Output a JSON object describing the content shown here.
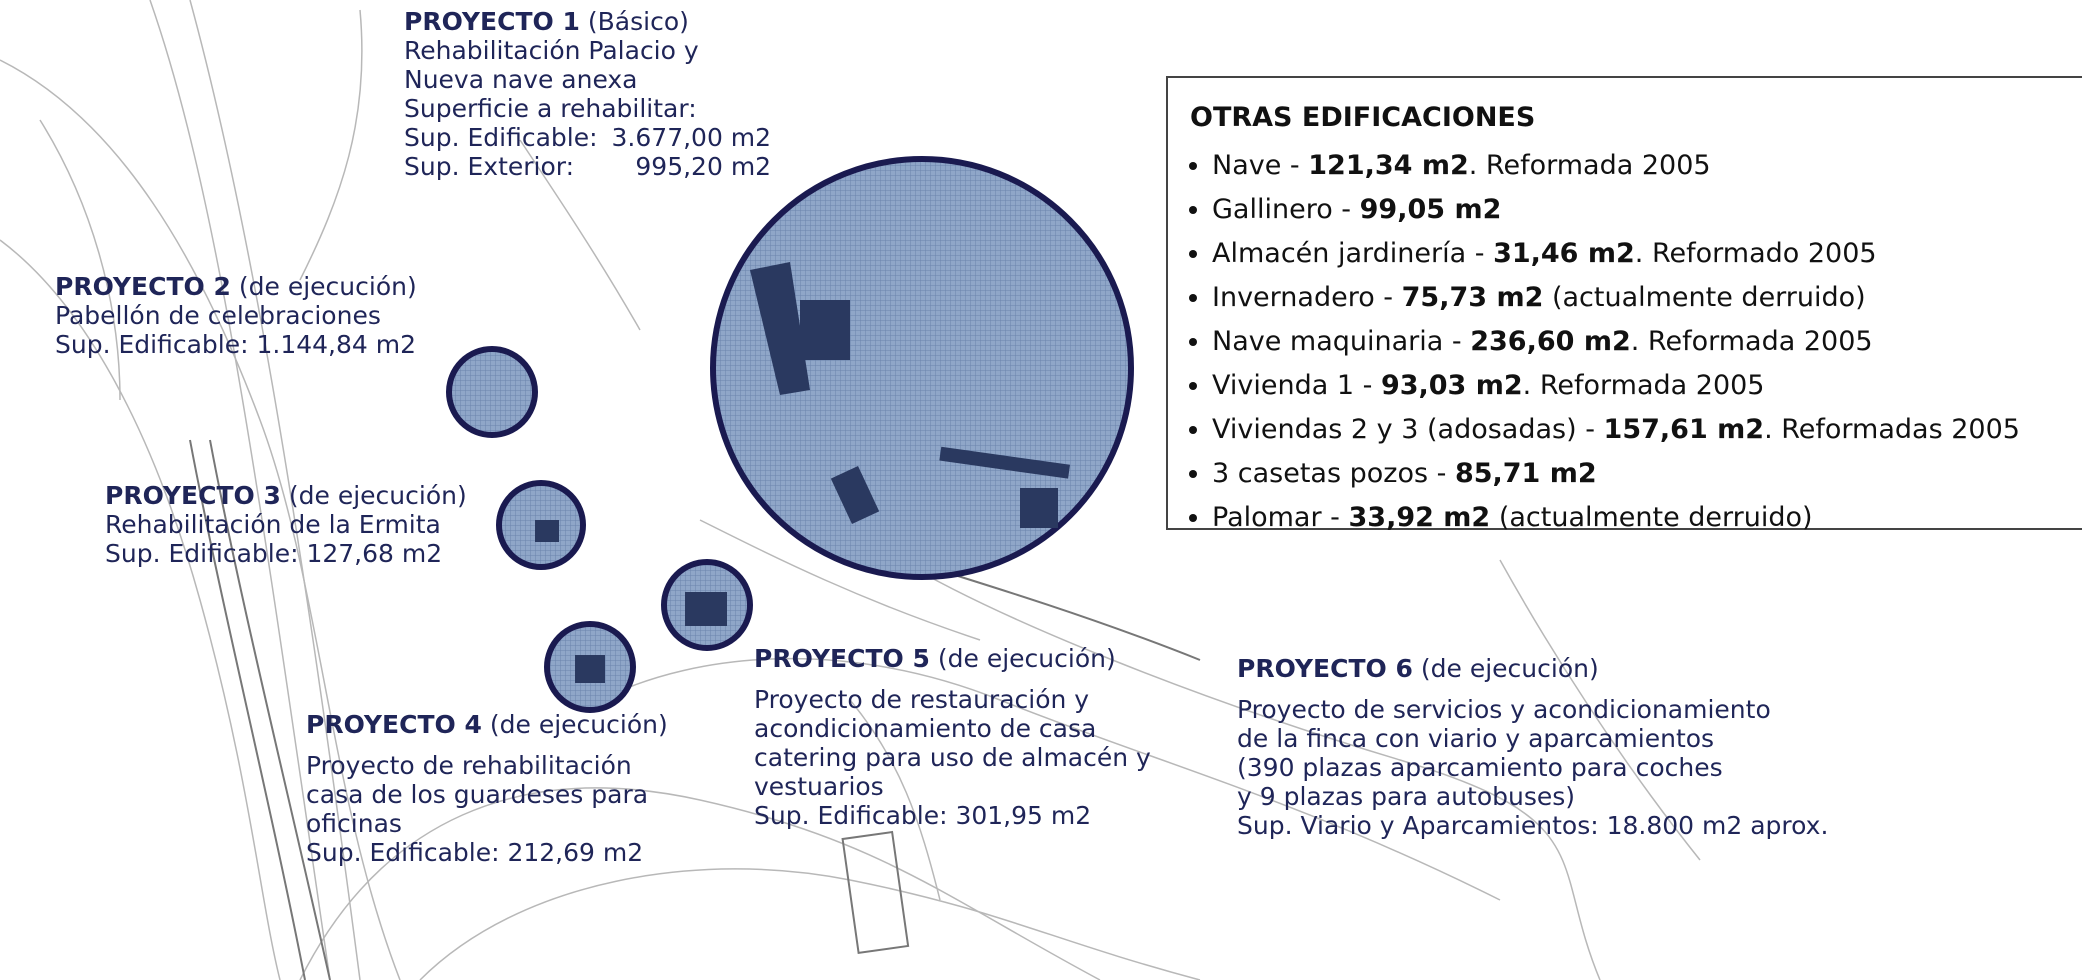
{
  "projects": [
    {
      "title": "PROYECTO 1",
      "kind": "(Básico)",
      "lines": [
        "Rehabilitación Palacio y",
        "Nueva nave anexa",
        "Superficie a rehabilitar:"
      ],
      "areas": [
        {
          "label": "Sup. Edificable:",
          "value": "3.677,00 m2"
        },
        {
          "label": "Sup. Exterior:",
          "value": "995,20 m2"
        }
      ]
    },
    {
      "title": "PROYECTO 2",
      "kind": "(de ejecución)",
      "lines": [
        "Pabellón de celebraciones",
        "Sup. Edificable: 1.144,84 m2"
      ]
    },
    {
      "title": "PROYECTO 3",
      "kind": "(de ejecución)",
      "lines": [
        "Rehabilitación de la Ermita",
        "Sup. Edificable: 127,68 m2"
      ]
    },
    {
      "title": "PROYECTO 4",
      "kind": "(de ejecución)",
      "lines": [
        "Proyecto de rehabilitación",
        "casa de los guardeses para",
        "oficinas",
        "Sup. Edificable: 212,69 m2"
      ]
    },
    {
      "title": "PROYECTO 5",
      "kind": "(de ejecución)",
      "lines": [
        "Proyecto de restauración y",
        "acondicionamiento de casa",
        "catering para uso de almacén y",
        "vestuarios",
        "Sup. Edificable: 301,95 m2"
      ]
    },
    {
      "title": "PROYECTO 6",
      "kind": "(de ejecución)",
      "lines": [
        "Proyecto de servicios y acondicionamiento",
        "de la finca con viario y aparcamientos",
        "(390 plazas aparcamiento para coches",
        "y 9 plazas para autobuses)",
        "Sup. Viario y Aparcamientos: 18.800 m2 aprox."
      ]
    }
  ],
  "other_buildings": {
    "title": "OTRAS EDIFICACIONES",
    "items": [
      {
        "name": "Nave - ",
        "area": "121,34 m2",
        "note": ". Reformada 2005"
      },
      {
        "name": "Gallinero - ",
        "area": "99,05 m2"
      },
      {
        "name": "Almacén jardinería - ",
        "area": "31,46 m2",
        "note": ". Reformado 2005"
      },
      {
        "name": "Invernadero - ",
        "area": "75,73 m2",
        "note": " (actualmente derruido)"
      },
      {
        "name": "Nave maquinaria - ",
        "area": "236,60 m2",
        "note": ". Reformada 2005"
      },
      {
        "name": "Vivienda 1 - ",
        "area": "93,03 m2",
        "note": ". Reformada 2005"
      },
      {
        "name": "Viviendas 2 y 3 (adosadas) - ",
        "area": "157,61 m2",
        "note": ". Reformadas 2005"
      },
      {
        "name": "3 casetas pozos - ",
        "area": "85,71 m2"
      },
      {
        "name": "Palomar - ",
        "area": "33,92 m2",
        "note": " (actualmente derruido)"
      }
    ]
  }
}
